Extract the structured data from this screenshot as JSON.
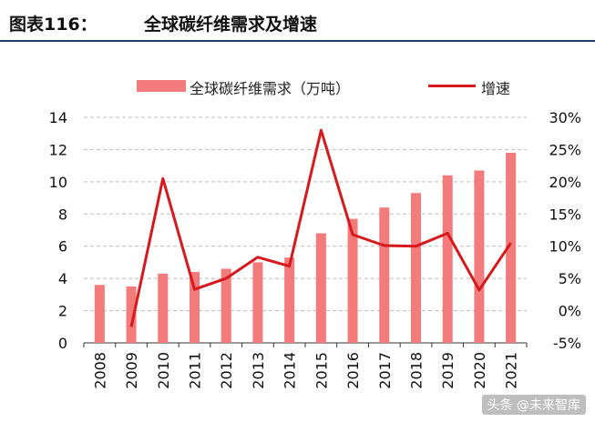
{
  "header": {
    "fig_label": "图表116：",
    "fig_title": "全球碳纤维需求及增速"
  },
  "watermark": "头条 @未来智库",
  "colors": {
    "bar": "#f47b7b",
    "line": "#d7181c",
    "rule": "#1f3a68",
    "grid": "#bdbdbd"
  },
  "chart_data": {
    "type": "bar",
    "categories": [
      "2008",
      "2009",
      "2010",
      "2011",
      "2012",
      "2013",
      "2014",
      "2015",
      "2016",
      "2017",
      "2018",
      "2019",
      "2020",
      "2021"
    ],
    "series": [
      {
        "name": "全球碳纤维需求（万吨）",
        "type": "bar",
        "axis": "left",
        "values": [
          3.6,
          3.5,
          4.3,
          4.4,
          4.6,
          5.0,
          5.3,
          6.8,
          7.7,
          8.4,
          9.3,
          10.4,
          10.7,
          11.8
        ]
      },
      {
        "name": "增速",
        "type": "line",
        "axis": "right",
        "values": [
          null,
          -2.5,
          20.5,
          3.3,
          5.0,
          8.3,
          6.9,
          28.0,
          11.8,
          10.1,
          10.0,
          12.0,
          3.2,
          10.5
        ]
      }
    ],
    "left_axis": {
      "ylim": [
        0,
        14
      ],
      "ticks": [
        "0",
        "2",
        "4",
        "6",
        "8",
        "10",
        "12",
        "14"
      ]
    },
    "right_axis": {
      "ylim": [
        -5,
        30
      ],
      "ticks": [
        "-5%",
        "0%",
        "5%",
        "10%",
        "15%",
        "20%",
        "25%",
        "30%"
      ]
    },
    "grid": true,
    "legend_position": "top"
  }
}
